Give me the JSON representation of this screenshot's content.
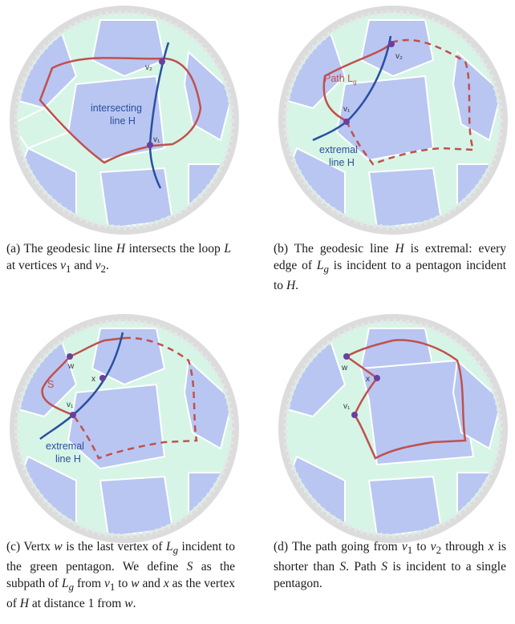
{
  "panels": [
    {
      "id": "a",
      "caption": "(a) The geodesic line H intersects the loop L at vertices v₁ and v₂.",
      "labels": {
        "line": "intersecting\nline H",
        "v1": "v₁",
        "v2": "v₂"
      }
    },
    {
      "id": "b",
      "caption": "(b) The geodesic line H is extremal: every edge of L_g is incident to a pentagon incident to H.",
      "labels": {
        "path": "Path L_g",
        "line": "extremal\nline H",
        "v1": "v₁",
        "v2": "v₂"
      }
    },
    {
      "id": "c",
      "caption": "(c) Vertx w is the last vertex of L_g incident to the green pentagon. We define S as the subpath of L_g from v₁ to w and x as the vertex of H at distance 1 from w.",
      "labels": {
        "w": "w",
        "x": "x",
        "s": "S",
        "v1": "v₁",
        "line": "extremal\nline H"
      }
    },
    {
      "id": "d",
      "caption": "(d) The path going from v₁ to v₂ through x is shorter than S. Path S is incident to a single pentagon.",
      "labels": {
        "w": "w",
        "x": "x",
        "v1": "v₁"
      }
    }
  ],
  "colors": {
    "blue_tile": "#b9c6f2",
    "green_tile": "#d6f5e6",
    "rim": "#d8d8d8",
    "edge": "#ffffff",
    "loop_red": "#c0504d",
    "line_blue": "#2a4fa0",
    "vertex_purple": "#6b3fa0"
  }
}
